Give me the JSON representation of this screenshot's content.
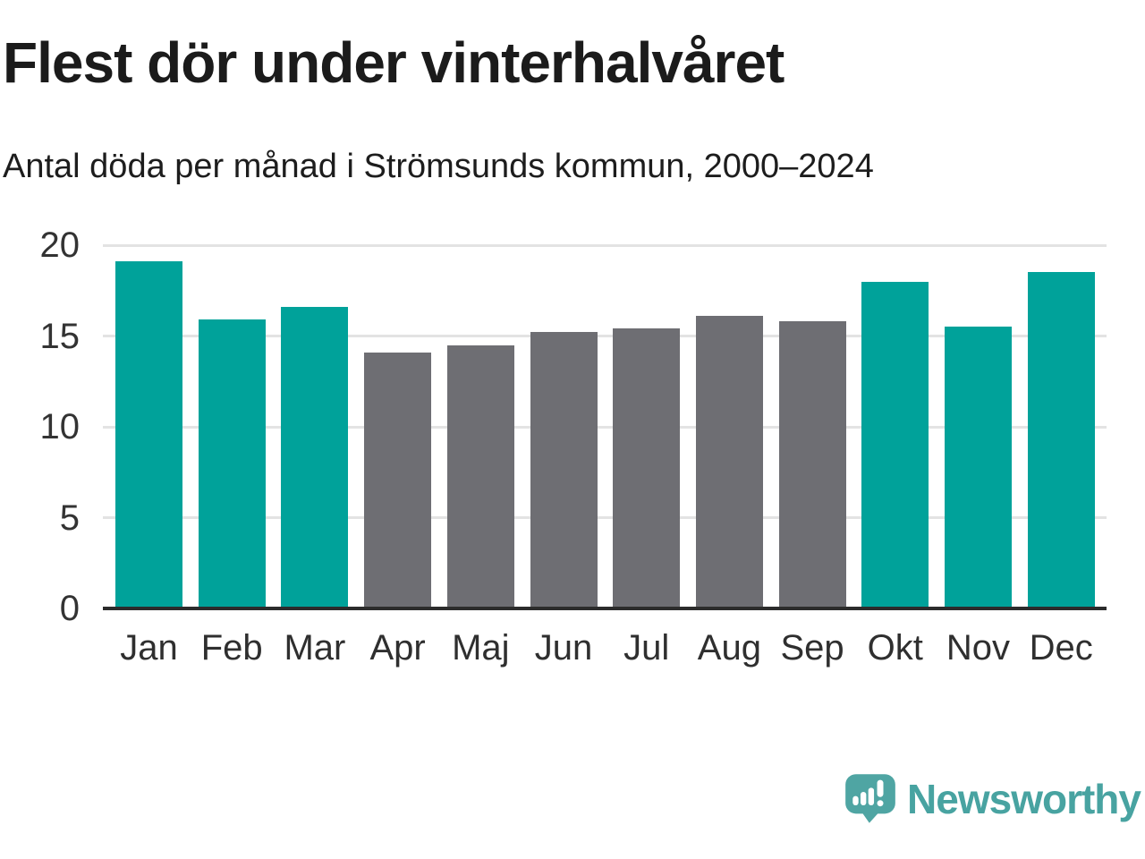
{
  "chart_data": {
    "type": "bar",
    "title": "Flest dör under vinterhalvåret",
    "subtitle": "Antal döda per månad i Strömsunds kommun, 2000–2024",
    "categories": [
      "Jan",
      "Feb",
      "Mar",
      "Apr",
      "Maj",
      "Jun",
      "Jul",
      "Aug",
      "Sep",
      "Okt",
      "Nov",
      "Dec"
    ],
    "values": [
      19.1,
      15.9,
      16.6,
      14.1,
      14.5,
      15.2,
      15.4,
      16.1,
      15.8,
      18.0,
      15.5,
      18.5
    ],
    "bar_colors": [
      "teal",
      "teal",
      "teal",
      "gray",
      "gray",
      "gray",
      "gray",
      "gray",
      "gray",
      "teal",
      "teal",
      "teal"
    ],
    "palette": {
      "teal": "#00A29A",
      "gray": "#6E6E73"
    },
    "xlabel": "",
    "ylabel": "",
    "ylim": [
      0,
      20
    ],
    "yticks": [
      0,
      5,
      10,
      15,
      20
    ],
    "grid": "horizontal",
    "legend": "none"
  },
  "footer": {
    "brand": "Newsworthy"
  },
  "colors": {
    "bar_teal": "#00A29A",
    "bar_gray": "#6E6E73",
    "logo_teal": "#4FA5A3",
    "brand_text_teal": "#48A3A1",
    "gridline": "#E3E3E3",
    "axis_line": "#2C2C2C",
    "title_text": "#1B1B1B"
  }
}
